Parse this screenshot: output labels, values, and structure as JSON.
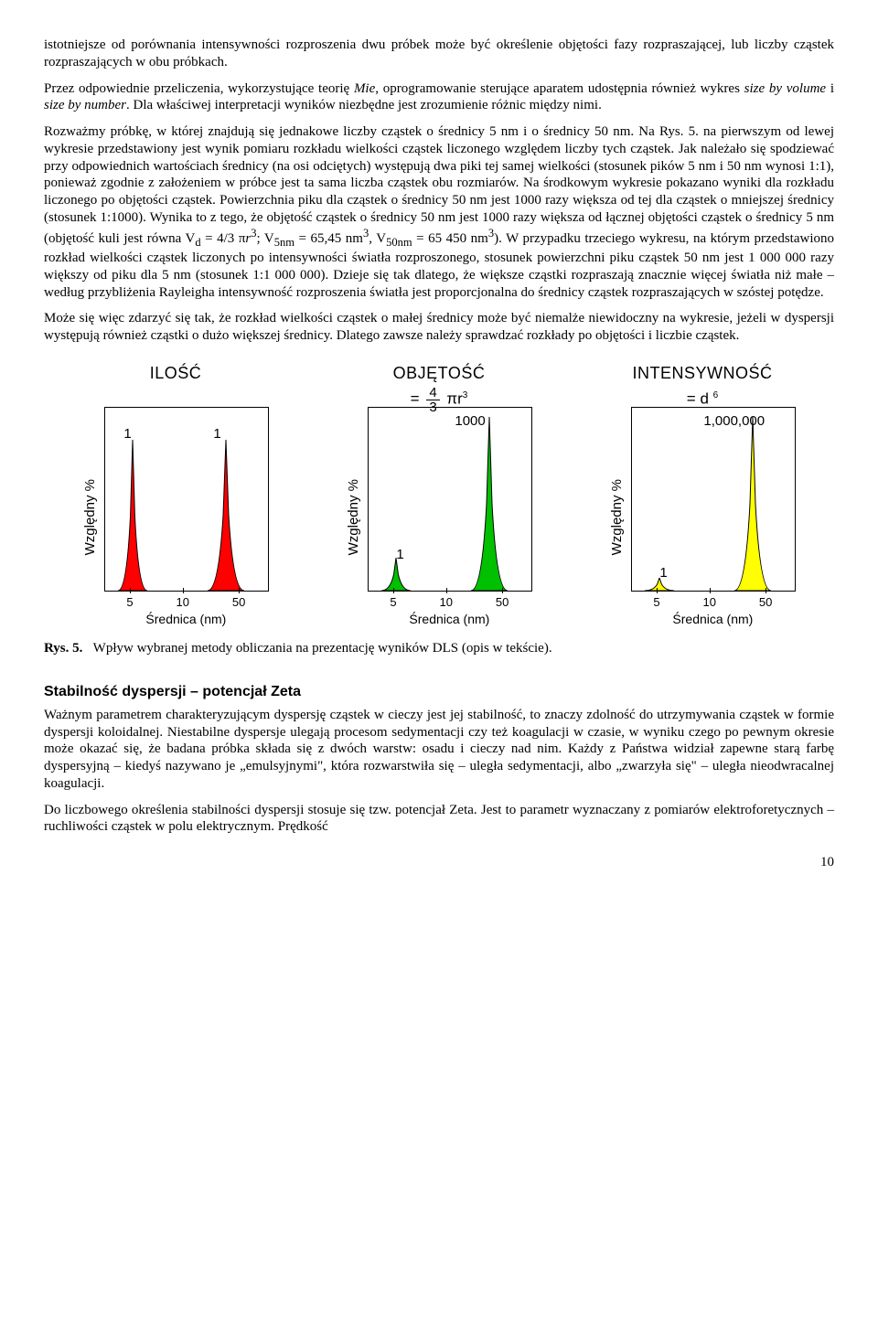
{
  "para1": "istotniejsze od porównania intensywności rozproszenia dwu próbek może być określenie objętości fazy rozpraszającej, lub liczby cząstek rozpraszających w obu próbkach.",
  "para2a": "Przez odpowiednie przeliczenia, wykorzystujące teorię ",
  "para2_it1": "Mie",
  "para2b": ", oprogramowanie sterujące aparatem udostępnia również wykres ",
  "para2_it2": "size by volume",
  "para2c": " i ",
  "para2_it3": "size by number",
  "para2d": ". Dla właściwej interpretacji wyników niezbędne jest zrozumienie różnic między nimi.",
  "para3a": "Rozważmy próbkę, w której znajdują się jednakowe liczby cząstek o średnicy 5 nm i o średnicy 50 nm. Na Rys. 5. na pierwszym od lewej wykresie przedstawiony jest wynik pomiaru rozkładu wielkości cząstek liczonego względem liczby tych cząstek. Jak należało się spodziewać przy odpowiednich wartościach średnicy (na osi odciętych) występują dwa piki tej samej wielkości (stosunek pików 5 nm i 50 nm wynosi 1:1), ponieważ zgodnie z założeniem w próbce jest ta sama liczba cząstek obu rozmiarów. Na środkowym wykresie pokazano wyniki dla rozkładu liczonego po objętości cząstek. Powierzchnia piku dla cząstek o średnicy 50 nm jest 1000 razy większa od tej dla cząstek o mniejszej średnicy (stosunek 1:1000). Wynika to z tego, że objętość cząstek o średnicy 50 nm jest 1000 razy większa od łącznej objętości cząstek o średnicy 5 nm (objętość kuli jest równa V",
  "para3_sub1": "d",
  "para3b": " = 4/3 π",
  "para3_it1": "r",
  "para3_sup1": "3",
  "para3c": "; V",
  "para3_sub2": "5nm",
  "para3d": " = 65,45 nm",
  "para3_sup2": "3",
  "para3e": ", V",
  "para3_sub3": "50nm",
  "para3f": " = 65 450 nm",
  "para3_sup3": "3",
  "para3g": "). W przypadku trzeciego wykresu, na którym przedstawiono rozkład wielkości cząstek liczonych po intensywności światła rozproszonego, stosunek powierzchni piku cząstek 50 nm jest 1 000 000 razy większy od piku dla 5 nm (stosunek 1:1 000 000). Dzieje się tak dlatego, że większe cząstki rozpraszają znacznie więcej światła niż małe – według przybliżenia Rayleigha intensywność rozproszenia światła jest proporcjonalna do średnicy cząstek rozpraszających w szóstej potędze.",
  "para4": "Może się więc zdarzyć się tak, że rozkład wielkości cząstek o małej średnicy może być niemalże niewidoczny na wykresie, jeżeli w dyspersji występują również cząstki o dużo większej średnicy. Dlatego zawsze należy sprawdzać rozkłady po objętości i liczbie cząstek.",
  "charts": {
    "ylab": "Względny %",
    "xlab": "Średnica (nm)",
    "xticks": [
      "5",
      "10",
      "50"
    ],
    "ilosc": {
      "title": "ILOŚĆ",
      "sub": "",
      "color": "#ff0000",
      "left_label": "1",
      "right_label": "1",
      "left_h": 165,
      "right_h": 165
    },
    "obj": {
      "title": "OBJĘTOŚĆ",
      "sub_prefix": "= ",
      "frac_num": "4",
      "frac_den": "3",
      "sub_suffix": " πr",
      "sub_sup": "3",
      "color": "#00c000",
      "left_label": "1",
      "right_label": "1000",
      "left_h": 36,
      "right_h": 190
    },
    "int": {
      "title": "INTENSYWNOŚĆ",
      "sub_prefix": "= d ",
      "sub_sup": "6",
      "color": "#ffff00",
      "left_label": "1",
      "right_label": "1,000,000",
      "left_h": 14,
      "right_h": 190
    }
  },
  "fig_label": "Rys. 5.",
  "fig_text": "Wpływ wybranej metody obliczania na prezentację wyników DLS (opis w tekście).",
  "section": "Stabilność dyspersji – potencjał Zeta",
  "para5": "Ważnym parametrem charakteryzującym dyspersję cząstek w cieczy jest jej stabilność, to znaczy zdolność do utrzymywania cząstek w formie dyspersji koloidalnej. Niestabilne dyspersje ulegają procesom sedymentacji czy też koagulacji w czasie, w wyniku czego po pewnym okresie może okazać się, że badana próbka składa się z dwóch warstw: osadu i cieczy nad nim. Każdy z Państwa widział zapewne starą farbę dyspersyjną – kiedyś nazywano je „emulsyjnymi\", która rozwarstwiła się – uległa sedymentacji, albo „zwarzyła się\" – uległa nieodwracalnej koagulacji.",
  "para6": "Do liczbowego określenia stabilności dyspersji stosuje się tzw. potencjał Zeta. Jest to parametr wyznaczany z pomiarów elektroforetycznych – ruchliwości cząstek w polu elektrycznym. Prędkość",
  "page": "10"
}
